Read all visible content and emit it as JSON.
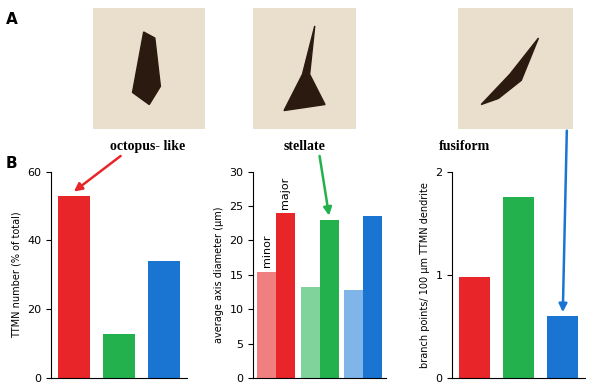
{
  "panels": [
    "A",
    "B"
  ],
  "cell_types": [
    "octopus- like",
    "stellate",
    "fusiform"
  ],
  "chart_data": [
    {
      "type": "bar",
      "ylabel": "TTMN number (% of total)",
      "categories": [
        null,
        null,
        null
      ],
      "values": [
        53,
        13,
        34
      ],
      "colors": [
        "#e8262a",
        "#22b14c",
        "#1a75d2"
      ],
      "ylim": [
        0,
        60
      ],
      "yticks": [
        0,
        20,
        40,
        60
      ],
      "tick_labels": "y"
    },
    {
      "type": "bar",
      "ylabel": "average axis diameter (µm)",
      "categories": [
        null,
        null,
        null
      ],
      "series": [
        {
          "name": "minor",
          "colors": [
            "#f08080",
            "#7fd39b",
            "#7fb5e8"
          ],
          "values": [
            15.5,
            13.3,
            12.8
          ]
        },
        {
          "name": "major",
          "colors": [
            "#e8262a",
            "#22b14c",
            "#1a75d2"
          ],
          "values": [
            24,
            23,
            23.6
          ]
        }
      ],
      "ylim": [
        0,
        30
      ],
      "yticks": [
        0,
        5,
        10,
        15,
        20,
        25,
        30
      ],
      "tick_labels": "y"
    },
    {
      "type": "bar",
      "ylabel": "branch points/ 100 µm TTMN dendrite",
      "categories": [
        null,
        null,
        null
      ],
      "values": [
        0.98,
        1.75,
        0.6
      ],
      "colors": [
        "#e8262a",
        "#22b14c",
        "#1a75d2"
      ],
      "ylim": [
        0,
        2
      ],
      "yticks": [
        0,
        1,
        2
      ],
      "tick_labels": "y"
    }
  ]
}
